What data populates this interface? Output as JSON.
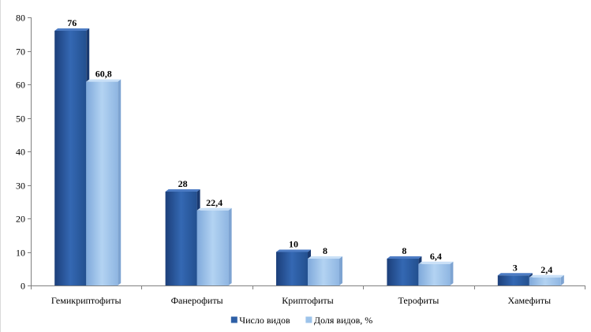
{
  "chart_data": {
    "type": "bar",
    "categories": [
      "Гемикриптофиты",
      "Фанерофиты",
      "Криптофиты",
      "Терофиты",
      "Хамефиты"
    ],
    "series": [
      {
        "name": "Число видов",
        "values": [
          76,
          28,
          10,
          8,
          3
        ],
        "labels": [
          "76",
          "28",
          "10",
          "8",
          "3"
        ],
        "color": "#2e5fa6"
      },
      {
        "name": "Доля видов, %",
        "values": [
          60.8,
          22.4,
          8,
          6.4,
          2.4
        ],
        "labels": [
          "60,8",
          "22,4",
          "8",
          "6,4",
          "2,4"
        ],
        "color": "#9dc3ea"
      }
    ],
    "ylim": [
      0,
      80
    ],
    "yticks": [
      0,
      10,
      20,
      30,
      40,
      50,
      60,
      70,
      80
    ],
    "grid": false,
    "legend_position": "bottom"
  }
}
